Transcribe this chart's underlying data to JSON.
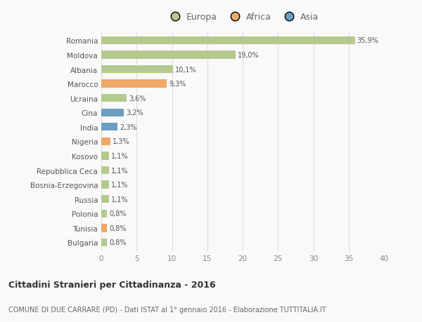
{
  "countries": [
    "Romania",
    "Moldova",
    "Albania",
    "Marocco",
    "Ucraina",
    "Cina",
    "India",
    "Nigeria",
    "Kosovo",
    "Repubblica Ceca",
    "Bosnia-Erzegovina",
    "Russia",
    "Polonia",
    "Tunisia",
    "Bulgaria"
  ],
  "values": [
    35.9,
    19.0,
    10.1,
    9.3,
    3.6,
    3.2,
    2.3,
    1.3,
    1.1,
    1.1,
    1.1,
    1.1,
    0.8,
    0.8,
    0.8
  ],
  "labels": [
    "35,9%",
    "19,0%",
    "10,1%",
    "9,3%",
    "3,6%",
    "3,2%",
    "2,3%",
    "1,3%",
    "1,1%",
    "1,1%",
    "1,1%",
    "1,1%",
    "0,8%",
    "0,8%",
    "0,8%"
  ],
  "continents": [
    "Europa",
    "Europa",
    "Europa",
    "Africa",
    "Europa",
    "Asia",
    "Asia",
    "Africa",
    "Europa",
    "Europa",
    "Europa",
    "Europa",
    "Europa",
    "Africa",
    "Europa"
  ],
  "colors": {
    "Europa": "#b5c98e",
    "Africa": "#f0a868",
    "Asia": "#6a9ec2"
  },
  "xlim": [
    0,
    40
  ],
  "xticks": [
    0,
    5,
    10,
    15,
    20,
    25,
    30,
    35,
    40
  ],
  "title_bold": "Cittadini Stranieri per Cittadinanza - 2016",
  "subtitle": "COMUNE DI DUE CARRARE (PD) - Dati ISTAT al 1° gennaio 2016 - Elaborazione TUTTITALIA.IT",
  "bg_color": "#f9f9f9",
  "grid_color": "#dddddd",
  "bar_height": 0.55
}
